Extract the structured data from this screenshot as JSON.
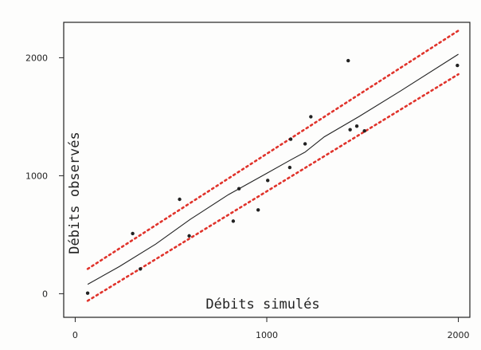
{
  "chart_data": {
    "type": "scatter",
    "title": "",
    "xlabel": "Débits simulés",
    "ylabel": "Débits observés",
    "xlim": [
      -60,
      2060
    ],
    "ylim": [
      -200,
      2300
    ],
    "xticks": [
      0,
      1000,
      2000
    ],
    "xtick_labels": [
      "0",
      "1000",
      "2000"
    ],
    "yticks": [
      0,
      1000,
      2000
    ],
    "ytick_labels": [
      "0",
      "1000",
      "2000"
    ],
    "grid": false,
    "legend": "none",
    "colors": {
      "points": "#222222",
      "fit_line": "#222222",
      "bounds": "#e0332b",
      "frame": "#222222"
    },
    "points": [
      {
        "x": 65,
        "y": 5
      },
      {
        "x": 300,
        "y": 510
      },
      {
        "x": 340,
        "y": 210
      },
      {
        "x": 545,
        "y": 800
      },
      {
        "x": 595,
        "y": 490
      },
      {
        "x": 825,
        "y": 615
      },
      {
        "x": 855,
        "y": 890
      },
      {
        "x": 955,
        "y": 710
      },
      {
        "x": 1005,
        "y": 960
      },
      {
        "x": 1120,
        "y": 1070
      },
      {
        "x": 1125,
        "y": 1310
      },
      {
        "x": 1200,
        "y": 1270
      },
      {
        "x": 1230,
        "y": 1500
      },
      {
        "x": 1425,
        "y": 1975
      },
      {
        "x": 1435,
        "y": 1390
      },
      {
        "x": 1470,
        "y": 1420
      },
      {
        "x": 1510,
        "y": 1380
      },
      {
        "x": 1995,
        "y": 1935
      }
    ],
    "fit_line": {
      "name": "",
      "x": [
        65,
        230,
        420,
        600,
        800,
        1000,
        1120,
        1200,
        1300,
        1480,
        1700,
        2000
      ],
      "y": [
        80,
        230,
        420,
        630,
        840,
        1020,
        1130,
        1200,
        1330,
        1500,
        1720,
        2030
      ]
    },
    "upper_bound": {
      "name": "",
      "x": [
        65,
        2000
      ],
      "y": [
        210,
        2230
      ]
    },
    "lower_bound": {
      "name": "",
      "x": [
        65,
        2000
      ],
      "y": [
        -60,
        1860
      ]
    }
  }
}
